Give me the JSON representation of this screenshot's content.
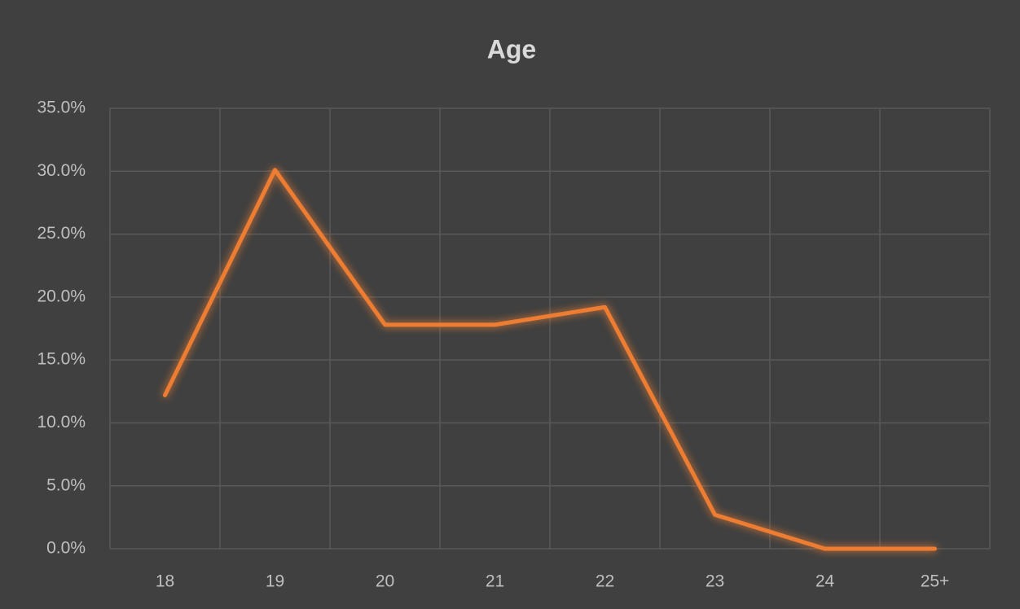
{
  "chart_data": {
    "type": "line",
    "title": "Age",
    "categories": [
      "18",
      "19",
      "20",
      "21",
      "22",
      "23",
      "24",
      "25+"
    ],
    "series": [
      {
        "name": "Age",
        "color": "#ed7d31",
        "values": [
          12.2,
          30.1,
          17.8,
          17.8,
          19.2,
          2.7,
          0,
          0
        ]
      }
    ],
    "ylim": [
      0,
      35
    ],
    "yticks": [
      {
        "value": 0,
        "label": "0.0%"
      },
      {
        "value": 5,
        "label": "5.0%"
      },
      {
        "value": 10,
        "label": "10.0%"
      },
      {
        "value": 15,
        "label": "15.0%"
      },
      {
        "value": 20,
        "label": "20.0%"
      },
      {
        "value": 25,
        "label": "25.0%"
      },
      {
        "value": 30,
        "label": "30.0%"
      },
      {
        "value": 35,
        "label": "35.0%"
      }
    ],
    "grid": true
  }
}
